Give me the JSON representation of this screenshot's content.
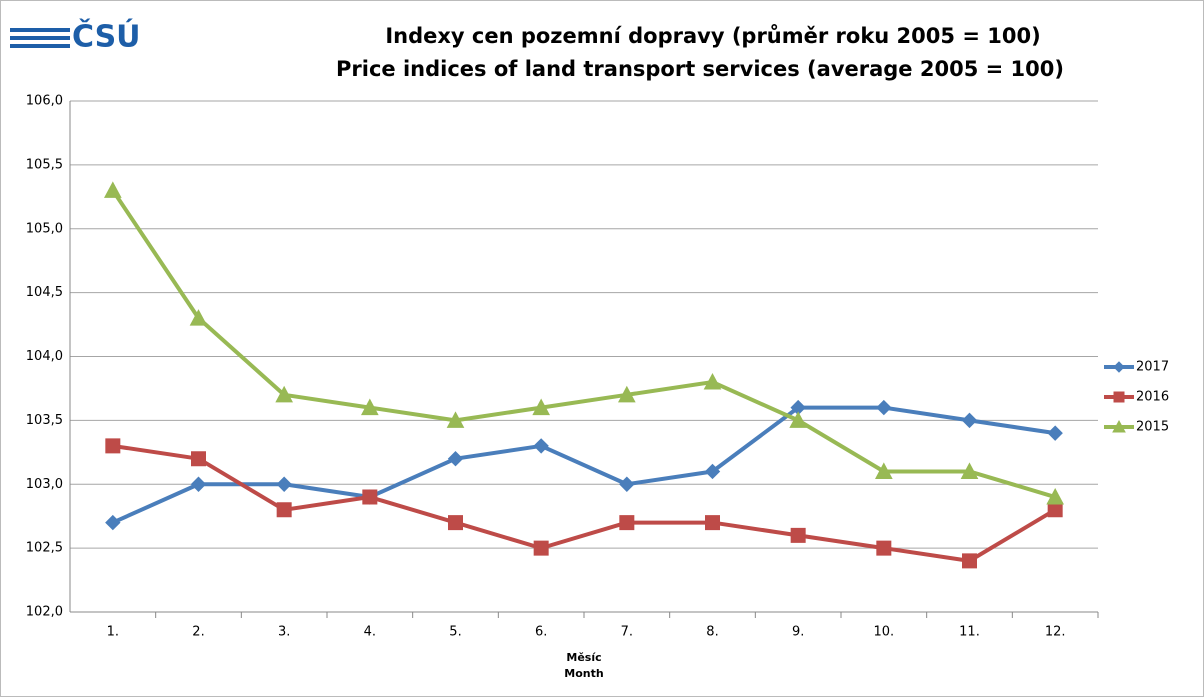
{
  "chart_data": {
    "type": "line",
    "logo": "ČSÚ",
    "title": [
      "Indexy cen pozemní dopravy (průměr roku 2005 = 100)",
      "Price indices of land transport services (average 2005 = 100)"
    ],
    "xlabel": [
      "Měsíc",
      "Month"
    ],
    "categories": [
      "1.",
      "2.",
      "3.",
      "4.",
      "5.",
      "6.",
      "7.",
      "8.",
      "9.",
      "10.",
      "11.",
      "12."
    ],
    "series": [
      {
        "name": "2017",
        "color": "#4a7ebb",
        "marker": "diamond",
        "values": [
          102.7,
          103.0,
          103.0,
          102.9,
          103.2,
          103.3,
          103.0,
          103.1,
          103.6,
          103.6,
          103.5,
          103.4
        ]
      },
      {
        "name": "2016",
        "color": "#be4b48",
        "marker": "square",
        "values": [
          103.3,
          103.2,
          102.8,
          102.9,
          102.7,
          102.5,
          102.7,
          102.7,
          102.6,
          102.5,
          102.4,
          102.8
        ]
      },
      {
        "name": "2015",
        "color": "#98b954",
        "marker": "triangle",
        "values": [
          105.3,
          104.3,
          103.7,
          103.6,
          103.5,
          103.6,
          103.7,
          103.8,
          103.5,
          103.1,
          103.1,
          102.9
        ]
      }
    ],
    "ylim": [
      102,
      106
    ],
    "yticks": [
      {
        "value": 102,
        "label": "102,0"
      },
      {
        "value": 102.5,
        "label": "102,5"
      },
      {
        "value": 103,
        "label": "103,0"
      },
      {
        "value": 103.5,
        "label": "103,5"
      },
      {
        "value": 104,
        "label": "104,0"
      },
      {
        "value": 104.5,
        "label": "104,5"
      },
      {
        "value": 105,
        "label": "105,0"
      },
      {
        "value": 105.5,
        "label": "105,5"
      },
      {
        "value": 106,
        "label": "106,0"
      }
    ],
    "grid": true,
    "legend": "right"
  }
}
